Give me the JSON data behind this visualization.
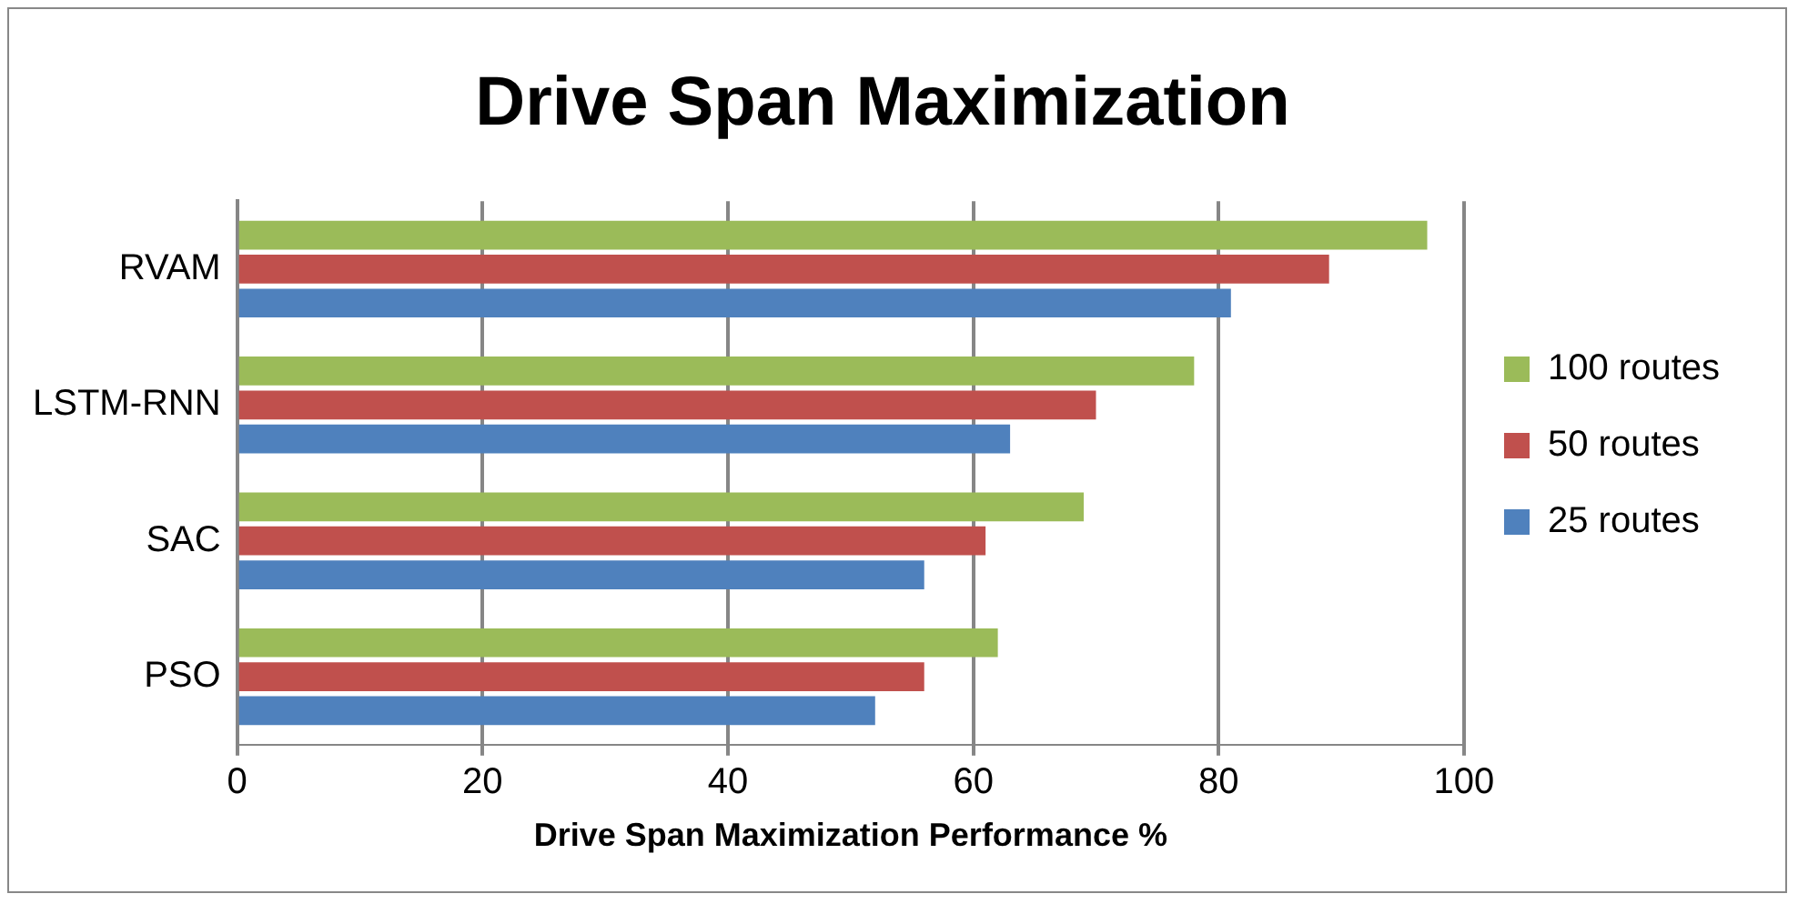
{
  "chart_data": {
    "type": "bar",
    "orientation": "horizontal",
    "title": "Drive Span Maximization",
    "xlabel": "Drive Span Maximization Performance %",
    "categories": [
      "RVAM",
      "LSTM-RNN",
      "SAC",
      "PSO"
    ],
    "series": [
      {
        "name": "100 routes",
        "color": "#9bbb59",
        "values": [
          97,
          78,
          69,
          62
        ]
      },
      {
        "name": "50 routes",
        "color": "#c0504d",
        "values": [
          89,
          70,
          61,
          56
        ]
      },
      {
        "name": "25 routes",
        "color": "#4f81bd",
        "values": [
          81,
          63,
          56,
          52
        ]
      }
    ],
    "xlim": [
      0,
      100
    ],
    "xticks": [
      0,
      20,
      40,
      60,
      80,
      100
    ],
    "grid": "x",
    "legend": "right"
  }
}
